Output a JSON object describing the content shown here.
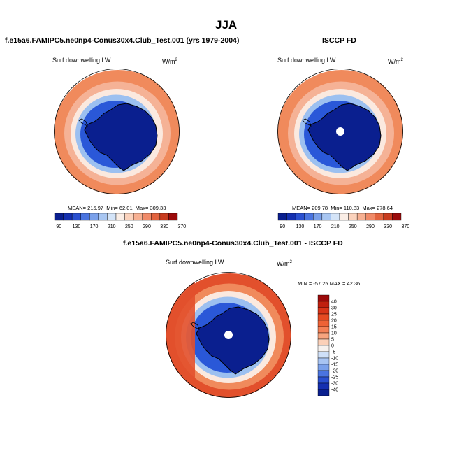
{
  "page_title": "JJA",
  "colors": {
    "deep_blue": "#0a1f8f",
    "blue": "#2a58d8",
    "light_blue": "#9cc0f0",
    "pale": "#fbe9df",
    "orange": "#f08a5c",
    "red_orange": "#e2502c",
    "dark_red": "#9b0a0a",
    "coastline": "#000000",
    "pole_marker": "#ffffff"
  },
  "chart_data": [
    {
      "type": "heatmap",
      "projection": "south-polar-stereographic",
      "title": "f.e15a6.FAMIPC5.ne0np4-Conus30x4.Club_Test.001 (yrs 1979-2004)",
      "variable_label": "Surf downwelling LW",
      "units_prefix": "W/m",
      "units_sup": "2",
      "stats": {
        "mean_label": "MEAN=",
        "mean": "215.97",
        "min_label": "Min=",
        "min": "62.01",
        "max_label": "Max=",
        "max": "309.33"
      },
      "colorbar": {
        "orientation": "horizontal",
        "tick_labels": [
          "90",
          "130",
          "170",
          "210",
          "250",
          "290",
          "330",
          "370"
        ],
        "colors": [
          "#0a1f8f",
          "#1530b0",
          "#2a50d0",
          "#4a74e0",
          "#7aa0ea",
          "#a8c6f2",
          "#d4e4f8",
          "#fbeee6",
          "#fbd2bc",
          "#f7b092",
          "#f08a68",
          "#e2633e",
          "#c83b1e",
          "#9b0a0a"
        ]
      },
      "pole_masked": false
    },
    {
      "type": "heatmap",
      "projection": "south-polar-stereographic",
      "title": "ISCCP FD",
      "variable_label": "Surf downwelling LW",
      "units_prefix": "W/m",
      "units_sup": "2",
      "stats": {
        "mean_label": "MEAN=",
        "mean": "209.78",
        "min_label": "Min=",
        "min": "110.83",
        "max_label": "Max=",
        "max": "278.64"
      },
      "colorbar": {
        "orientation": "horizontal",
        "tick_labels": [
          "90",
          "130",
          "170",
          "210",
          "250",
          "290",
          "330",
          "370"
        ],
        "colors": [
          "#0a1f8f",
          "#1530b0",
          "#2a50d0",
          "#4a74e0",
          "#7aa0ea",
          "#a8c6f2",
          "#d4e4f8",
          "#fbeee6",
          "#fbd2bc",
          "#f7b092",
          "#f08a68",
          "#e2633e",
          "#c83b1e",
          "#9b0a0a"
        ]
      },
      "pole_masked": true
    },
    {
      "type": "heatmap",
      "projection": "south-polar-stereographic",
      "title": "f.e15a6.FAMIPC5.ne0np4-Conus30x4.Club_Test.001 - ISCCP FD",
      "variable_label": "Surf downwelling LW",
      "units_prefix": "W/m",
      "units_sup": "2",
      "stats": {
        "text": "MIN = -57.25  MAX =  42.36"
      },
      "colorbar": {
        "orientation": "vertical",
        "tick_labels": [
          "40",
          "30",
          "25",
          "20",
          "15",
          "10",
          "5",
          "0",
          "-5",
          "-10",
          "-15",
          "-20",
          "-25",
          "-30",
          "-40"
        ],
        "colors": [
          "#9b0a0a",
          "#c0200f",
          "#d83418",
          "#e64a22",
          "#ee6236",
          "#f48056",
          "#f8a47e",
          "#fbd0b8",
          "#f6f1ee",
          "#cfe0f8",
          "#a8c4f2",
          "#7aa0ea",
          "#4a74e0",
          "#2a50d0",
          "#1530b0",
          "#0a1f8f"
        ]
      },
      "pole_masked": true
    }
  ]
}
